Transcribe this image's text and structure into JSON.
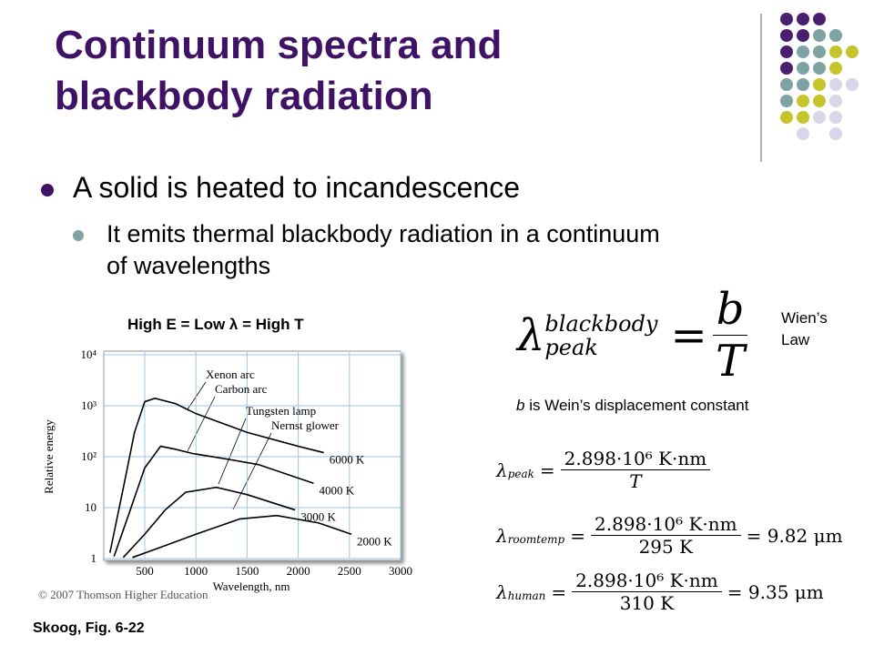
{
  "slide": {
    "title_lines": [
      "Continuum spectra and",
      "blackbody radiation"
    ],
    "bullets": [
      "A solid is heated to incandescence"
    ],
    "sub_bullets": [
      "It emits thermal blackbody radiation in a continuum",
      "of wavelengths"
    ],
    "figure_caption": "High E = Low λ = High T",
    "source": "Skoog, Fig. 6-22",
    "wien": {
      "symbol": "λ",
      "superscript": "blackbody",
      "subscript": "peak",
      "equals": "=",
      "numerator": "b",
      "denominator": "T",
      "name_lines": [
        "Wien’s",
        "Law"
      ]
    },
    "constant_note": {
      "symbol": "b",
      "text": "is Wein’s displacement constant"
    },
    "equations": [
      {
        "symbol": "λ",
        "subscript": "peak",
        "equals": "=",
        "numerator": "2.898·10⁶ K·nm",
        "denominator": "T"
      },
      {
        "symbol": "λ",
        "subscript": "roomtemp",
        "equals": "=",
        "numerator": "2.898·10⁶ K·nm",
        "denominator": "295 K",
        "result": "= 9.82 μm"
      },
      {
        "symbol": "λ",
        "subscript": "human",
        "equals": "=",
        "numerator": "2.898·10⁶ K·nm",
        "denominator": "310 K",
        "result": "= 9.35 μm"
      }
    ]
  },
  "chart_data": {
    "type": "line",
    "x_label": "Wavelength, nm",
    "y_label": "Relative energy",
    "credit": "© 2007 Thomson Higher Education",
    "xlim": [
      100,
      3000
    ],
    "xticks": [
      500,
      1000,
      1500,
      2000,
      2500,
      3000
    ],
    "ylim": [
      1,
      10000
    ],
    "log_y": true,
    "grid": true,
    "yticks": [
      1,
      10,
      {
        "value": 100,
        "label": "10²"
      },
      {
        "value": 1000,
        "label": "10³"
      },
      {
        "value": 10000,
        "label": "10⁴"
      }
    ],
    "annotations": [
      "Xenon arc",
      "Carbon arc",
      "Tungsten lamp",
      "Nernst glower"
    ],
    "series": [
      {
        "name": "6000 K",
        "color": "#000000",
        "x": [
          160,
          300,
          400,
          500,
          600,
          800,
          1000,
          1500,
          2000,
          2250
        ],
        "values": [
          1.3,
          30,
          300,
          1200,
          1400,
          1100,
          700,
          300,
          160,
          120
        ]
      },
      {
        "name": "4000 K",
        "color": "#000000",
        "x": [
          200,
          350,
          500,
          655,
          800,
          970,
          1300,
          1610,
          2150
        ],
        "values": [
          1.1,
          8,
          60,
          160,
          140,
          115,
          90,
          70,
          30
        ]
      },
      {
        "name": "3000 K",
        "color": "#000000",
        "x": [
          290,
          500,
          700,
          900,
          1200,
          1500,
          1970
        ],
        "values": [
          1.05,
          3,
          9,
          20,
          25,
          18,
          9
        ]
      },
      {
        "name": "2000 K",
        "color": "#000000",
        "x": [
          380,
          700,
          1000,
          1430,
          1790,
          2200,
          2520
        ],
        "values": [
          1.05,
          1.8,
          3,
          6,
          7,
          5,
          3
        ]
      }
    ]
  }
}
